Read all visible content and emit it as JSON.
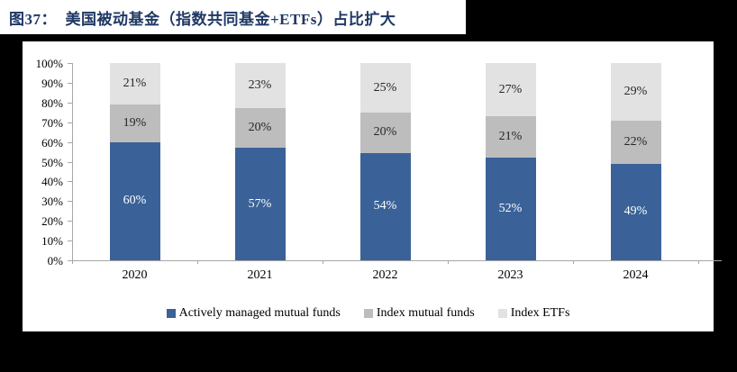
{
  "title": "图37：  美国被动基金（指数共同基金+ETFs）占比扩大",
  "colors": {
    "background": "#000000",
    "panel": "#FFFFFF",
    "title_text": "#1F3864",
    "axis": "#A6A6A6",
    "series_active": "#3A6298",
    "series_index_mf": "#BDBDBD",
    "series_index_etf": "#E2E2E2",
    "label_on_blue": "#FFFFFF",
    "label_on_gray": "#262626"
  },
  "chart_data": {
    "type": "bar",
    "stacked": true,
    "title": "图37：美国被动基金（指数共同基金+ETFs）占比扩大",
    "categories": [
      "2020",
      "2021",
      "2022",
      "2023",
      "2024"
    ],
    "series": [
      {
        "name": "Actively managed mutual funds",
        "color": "#3A6298",
        "label_color": "#FFFFFF",
        "values": [
          60,
          57,
          54,
          52,
          49
        ]
      },
      {
        "name": "Index mutual funds",
        "color": "#BDBDBD",
        "label_color": "#262626",
        "values": [
          19,
          20,
          20,
          21,
          22
        ]
      },
      {
        "name": "Index ETFs",
        "color": "#E2E2E2",
        "label_color": "#262626",
        "values": [
          21,
          23,
          25,
          27,
          29
        ]
      }
    ],
    "data_label_format": "{value}%",
    "xlabel": "",
    "ylabel": "",
    "ylim": [
      0,
      100
    ],
    "ytick_labels": [
      "0%",
      "10%",
      "20%",
      "30%",
      "40%",
      "50%",
      "60%",
      "70%",
      "80%",
      "90%",
      "100%"
    ],
    "grid": false,
    "legend_position": "bottom"
  }
}
